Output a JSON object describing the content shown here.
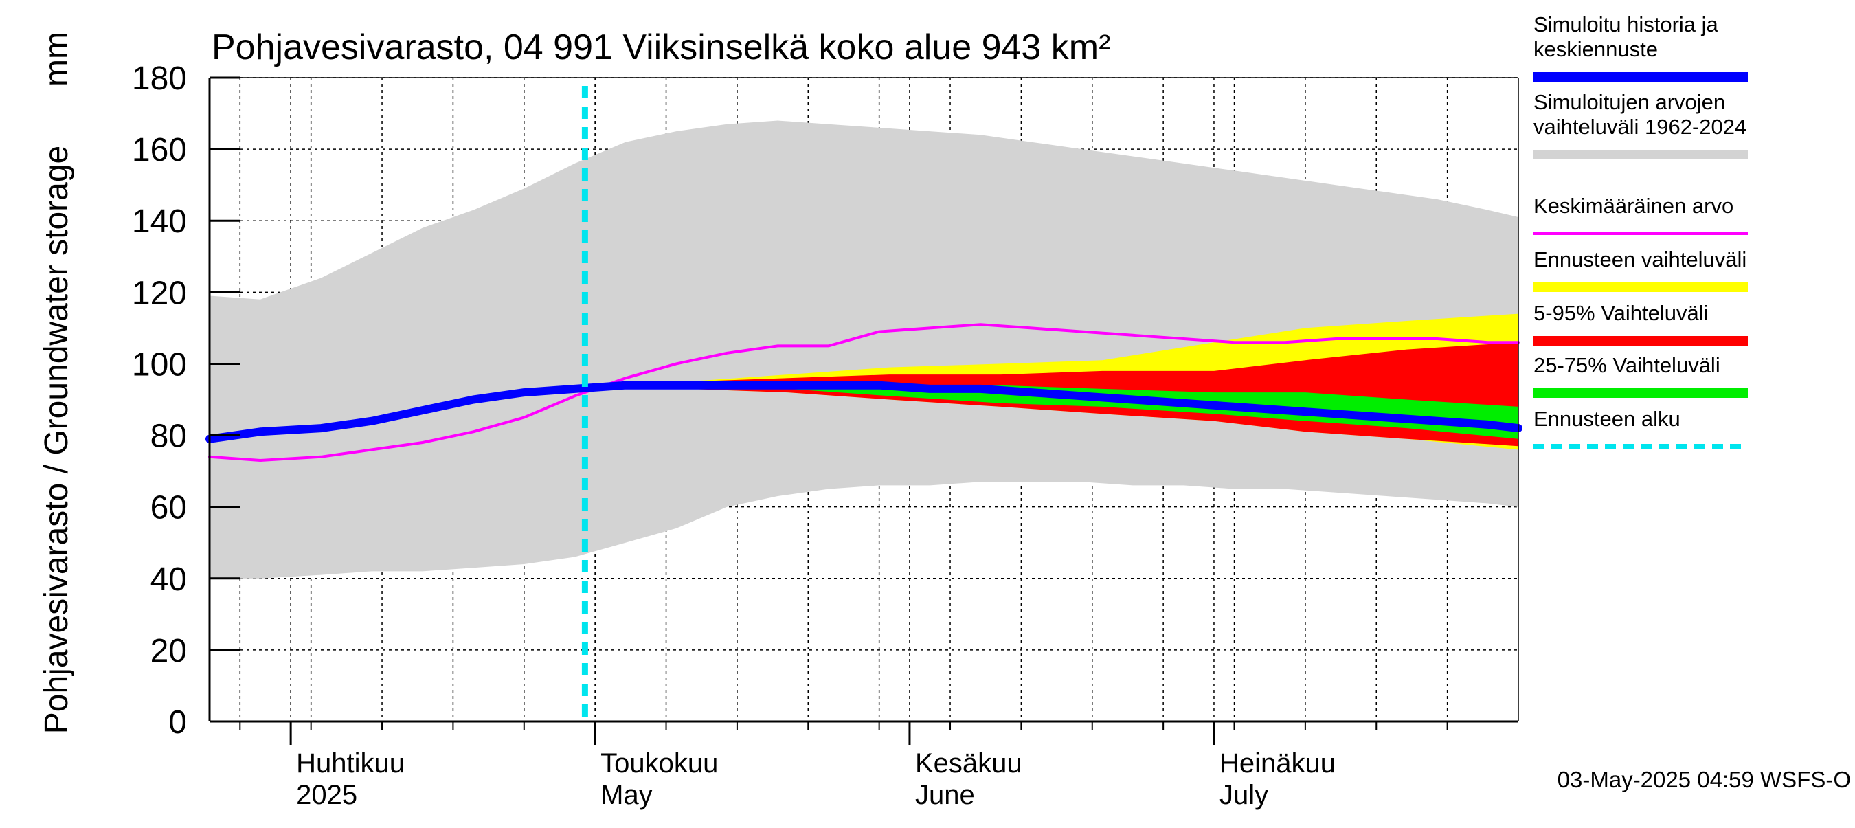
{
  "chart_data": {
    "type": "area",
    "title": "Pohjavesivarasto, 04 991 Viiksinselkä koko alue 943 km²",
    "ylabel": "Pohjavesivarasto / Groundwater storage",
    "yunit": "mm",
    "ylim": [
      0,
      180
    ],
    "yticks": [
      0,
      20,
      40,
      60,
      80,
      100,
      120,
      140,
      160,
      180
    ],
    "xlim": [
      "2025-03-24",
      "2025-07-31"
    ],
    "grid": true,
    "legend_position": "right",
    "months": [
      {
        "date": "2025-04-01",
        "fi": "Huhtikuu",
        "en": "2025"
      },
      {
        "date": "2025-05-01",
        "fi": "Toukokuu",
        "en": "May"
      },
      {
        "date": "2025-06-01",
        "fi": "Kesäkuu",
        "en": "June"
      },
      {
        "date": "2025-07-01",
        "fi": "Heinäkuu",
        "en": "July"
      }
    ],
    "forecast_start": "2025-04-30",
    "footer": "03-May-2025 04:59 WSFS-O",
    "series": [
      {
        "key": "history_range",
        "name": "Simuloitujen arvojen vaihteluväli 1962-2024",
        "color": "#d3d3d3",
        "dates": [
          "2025-03-24",
          "2025-03-29",
          "2025-04-04",
          "2025-04-09",
          "2025-04-14",
          "2025-04-19",
          "2025-04-24",
          "2025-04-29",
          "2025-05-04",
          "2025-05-09",
          "2025-05-14",
          "2025-05-19",
          "2025-05-24",
          "2025-05-29",
          "2025-06-03",
          "2025-06-08",
          "2025-06-13",
          "2025-06-18",
          "2025-06-23",
          "2025-06-28",
          "2025-07-03",
          "2025-07-08",
          "2025-07-13",
          "2025-07-18",
          "2025-07-23",
          "2025-07-28",
          "2025-07-31"
        ],
        "upper": [
          119,
          118,
          124,
          131,
          138,
          143,
          149,
          156,
          162,
          165,
          167,
          168,
          167,
          166,
          165,
          164,
          162,
          160,
          158,
          156,
          154,
          152,
          150,
          148,
          146,
          143,
          141
        ],
        "lower": [
          40,
          40,
          41,
          42,
          42,
          43,
          44,
          46,
          50,
          54,
          60,
          63,
          65,
          66,
          66,
          67,
          67,
          67,
          66,
          66,
          65,
          65,
          64,
          63,
          62,
          61,
          60
        ]
      },
      {
        "key": "forecast_range",
        "name": "Ennusteen vaihteluväli",
        "color": "#ffff00",
        "dates": [
          "2025-04-30",
          "2025-05-10",
          "2025-05-20",
          "2025-05-30",
          "2025-06-10",
          "2025-06-20",
          "2025-07-01",
          "2025-07-10",
          "2025-07-20",
          "2025-07-31"
        ],
        "upper": [
          93,
          95,
          97,
          99,
          100,
          101,
          106,
          110,
          112,
          114
        ],
        "lower": [
          93,
          93,
          92,
          90,
          88,
          86,
          84,
          81,
          79,
          76
        ]
      },
      {
        "key": "p5_95",
        "name": "5-95% Vaihteluväli",
        "color": "#ff0000",
        "dates": [
          "2025-04-30",
          "2025-05-10",
          "2025-05-20",
          "2025-05-30",
          "2025-06-10",
          "2025-06-20",
          "2025-07-01",
          "2025-07-10",
          "2025-07-20",
          "2025-07-31"
        ],
        "upper": [
          93,
          95,
          96,
          97,
          97,
          98,
          98,
          101,
          104,
          106
        ],
        "lower": [
          93,
          93,
          92,
          90,
          88,
          86,
          84,
          81,
          79,
          77
        ]
      },
      {
        "key": "p25_75",
        "name": "25-75% Vaihteluväli",
        "color": "#00ee00",
        "dates": [
          "2025-04-30",
          "2025-05-10",
          "2025-05-20",
          "2025-05-30",
          "2025-06-10",
          "2025-06-20",
          "2025-07-01",
          "2025-07-10",
          "2025-07-20",
          "2025-07-31"
        ],
        "upper": [
          93,
          94,
          94,
          94,
          94,
          93,
          92,
          92,
          90,
          88
        ],
        "lower": [
          93,
          94,
          93,
          91,
          89,
          88,
          86,
          84,
          82,
          79
        ]
      },
      {
        "key": "mean",
        "name": "Keskimääräinen arvo",
        "color": "#ff00ff",
        "dates": [
          "2025-03-24",
          "2025-03-29",
          "2025-04-04",
          "2025-04-09",
          "2025-04-14",
          "2025-04-19",
          "2025-04-24",
          "2025-04-29",
          "2025-05-04",
          "2025-05-09",
          "2025-05-14",
          "2025-05-19",
          "2025-05-24",
          "2025-05-29",
          "2025-06-03",
          "2025-06-08",
          "2025-06-13",
          "2025-06-18",
          "2025-06-23",
          "2025-06-28",
          "2025-07-03",
          "2025-07-08",
          "2025-07-13",
          "2025-07-18",
          "2025-07-23",
          "2025-07-28",
          "2025-07-31"
        ],
        "values": [
          74,
          73,
          74,
          76,
          78,
          81,
          85,
          91,
          96,
          100,
          103,
          105,
          105,
          109,
          110,
          111,
          110,
          109,
          108,
          107,
          106,
          106,
          107,
          107,
          107,
          106,
          106
        ]
      },
      {
        "key": "simulated",
        "name": "Simuloitu historia ja keskiennuste",
        "color": "#0000ff",
        "dates": [
          "2025-03-24",
          "2025-03-29",
          "2025-04-04",
          "2025-04-09",
          "2025-04-14",
          "2025-04-19",
          "2025-04-24",
          "2025-04-29",
          "2025-05-04",
          "2025-05-09",
          "2025-05-14",
          "2025-05-19",
          "2025-05-24",
          "2025-05-29",
          "2025-06-03",
          "2025-06-08",
          "2025-06-13",
          "2025-06-18",
          "2025-06-23",
          "2025-06-28",
          "2025-07-03",
          "2025-07-08",
          "2025-07-13",
          "2025-07-18",
          "2025-07-23",
          "2025-07-28",
          "2025-07-31"
        ],
        "values": [
          79,
          81,
          82,
          84,
          87,
          90,
          92,
          93,
          94,
          94,
          94,
          94,
          94,
          94,
          93,
          93,
          92,
          91,
          90,
          89,
          88,
          87,
          86,
          85,
          84,
          83,
          82
        ]
      },
      {
        "key": "forecast_start_line",
        "name": "Ennusteen alku",
        "color": "#00e5ee"
      }
    ]
  }
}
